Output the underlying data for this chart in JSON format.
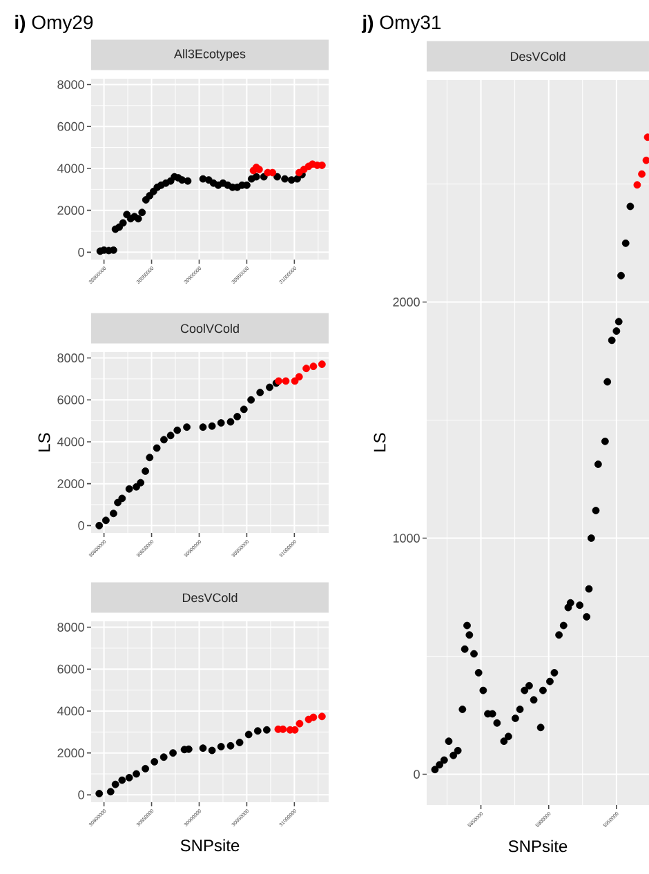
{
  "chart_data": [
    {
      "type": "scatter",
      "title": "All3Ecotypes",
      "annotations": [
        "**i)** Omy29"
      ],
      "marker": "circle",
      "grid": true,
      "xlim": [
        30786500,
        31036000
      ],
      "ylim": [
        -350,
        8280
      ],
      "xticks": [
        30800000,
        30850000,
        30900000,
        30950000,
        31000000
      ],
      "yticks": [
        0,
        2000,
        4000,
        6000,
        8000
      ],
      "series": [
        {
          "color": "#000000",
          "x": [
            30796000,
            30800000,
            30805000,
            30810000,
            30812000,
            30816000,
            30820000,
            30824000,
            30828000,
            30832000,
            30836000,
            30840000,
            30844000,
            30848000,
            30852000,
            30856000,
            30860000,
            30865000,
            30870000,
            30874000,
            30878000,
            30882000,
            30888000,
            30904000,
            30910000,
            30915000,
            30920000,
            30925000,
            30930000,
            30935000,
            30940000,
            30945000,
            30950000,
            30955000,
            30960000,
            30968000,
            30982000,
            30990000,
            30997000,
            31003000,
            31008000
          ],
          "values": [
            50,
            100,
            80,
            100,
            1100,
            1200,
            1400,
            1800,
            1600,
            1700,
            1600,
            1900,
            2500,
            2700,
            2900,
            3100,
            3200,
            3300,
            3400,
            3600,
            3550,
            3450,
            3400,
            3500,
            3450,
            3300,
            3200,
            3300,
            3200,
            3100,
            3100,
            3200,
            3200,
            3500,
            3600,
            3600,
            3600,
            3500,
            3450,
            3500,
            3700
          ]
        },
        {
          "color": "#ff0000",
          "x": [
            30957000,
            30960000,
            30963000,
            30972000,
            30977000,
            31005000,
            31010000,
            31015000,
            31019000,
            31024000,
            31029000
          ],
          "values": [
            3900,
            4050,
            3950,
            3800,
            3800,
            3800,
            3950,
            4100,
            4200,
            4150,
            4150
          ]
        }
      ]
    },
    {
      "type": "scatter",
      "title": "CoolVCold",
      "ylabel": "LS",
      "marker": "circle",
      "grid": true,
      "xlim": [
        30786500,
        31036000
      ],
      "ylim": [
        -350,
        8280
      ],
      "xticks": [
        30800000,
        30850000,
        30900000,
        30950000,
        31000000
      ],
      "yticks": [
        0,
        2000,
        4000,
        6000,
        8000
      ],
      "series": [
        {
          "color": "#000000",
          "x": [
            30795000,
            30802000,
            30810000,
            30814500,
            30819000,
            30826500,
            30834000,
            30838500,
            30843500,
            30848000,
            30855500,
            30863000,
            30870000,
            30877000,
            30887000,
            30904000,
            30913500,
            30923000,
            30933000,
            30940000,
            30947000,
            30954500,
            30964000,
            30974000,
            30981000
          ],
          "values": [
            0,
            250,
            580,
            1100,
            1300,
            1750,
            1850,
            2050,
            2600,
            3250,
            3700,
            4100,
            4300,
            4550,
            4700,
            4700,
            4750,
            4900,
            4950,
            5200,
            5550,
            6000,
            6350,
            6600,
            6800
          ]
        },
        {
          "color": "#ff0000",
          "x": [
            30983500,
            30991000,
            31000500,
            31005000,
            31012500,
            31020000,
            31029000
          ],
          "values": [
            6900,
            6900,
            6900,
            7100,
            7500,
            7600,
            7700
          ]
        }
      ]
    },
    {
      "type": "scatter",
      "title": "DesVCold",
      "xlabel": "SNPsite",
      "marker": "circle",
      "grid": true,
      "xlim": [
        30786500,
        31036000
      ],
      "ylim": [
        -350,
        8280
      ],
      "xticks": [
        30800000,
        30850000,
        30900000,
        30950000,
        31000000
      ],
      "yticks": [
        0,
        2000,
        4000,
        6000,
        8000
      ],
      "series": [
        {
          "color": "#000000",
          "x": [
            30795000,
            30807000,
            30812000,
            30819000,
            30826500,
            30834000,
            30843500,
            30853000,
            30862800,
            30872500,
            30884500,
            30889000,
            30904000,
            30913500,
            30923000,
            30933000,
            30942500,
            30952000,
            30961500,
            30971000
          ],
          "values": [
            60,
            150,
            500,
            700,
            820,
            1000,
            1250,
            1580,
            1800,
            2000,
            2160,
            2180,
            2230,
            2120,
            2300,
            2340,
            2500,
            2880,
            3050,
            3100
          ]
        },
        {
          "color": "#ff0000",
          "x": [
            30983000,
            30988000,
            30995500,
            31000500,
            31005500,
            31015000,
            31020000,
            31029000
          ],
          "values": [
            3130,
            3130,
            3100,
            3100,
            3400,
            3600,
            3700,
            3740
          ]
        }
      ]
    },
    {
      "type": "scatter",
      "title": "DesVCold",
      "annotations": [
        "**j)** Omy31"
      ],
      "xlabel": "SNPsite",
      "ylabel": "LS",
      "marker": "circle",
      "grid": true,
      "xlim": [
        5810000,
        5974000
      ],
      "ylim": [
        -130,
        2940
      ],
      "xticks": [
        5850000,
        5900000,
        5950000
      ],
      "yticks": [
        0,
        1000,
        2000
      ],
      "series": [
        {
          "color": "#000000",
          "x": [
            5816100,
            5819500,
            5822900,
            5826300,
            5829700,
            5833000,
            5836400,
            5838100,
            5839800,
            5841500,
            5844900,
            5848300,
            5851700,
            5855100,
            5858500,
            5861900,
            5867000,
            5870300,
            5875400,
            5878800,
            5882200,
            5885600,
            5889000,
            5894100,
            5895800,
            5900900,
            5904200,
            5907600,
            5911000,
            5914400,
            5916100,
            5922900,
            5928000,
            5929700,
            5931400,
            5934800,
            5936500,
            5941600,
            5943300,
            5946600,
            5950000,
            5951700,
            5953400,
            5956800,
            5960200
          ],
          "values": [
            20,
            40,
            60,
            140,
            80,
            100,
            275,
            530,
            630,
            590,
            510,
            430,
            355,
            256,
            256,
            217,
            140,
            160,
            237,
            275,
            355,
            375,
            315,
            198,
            355,
            393,
            430,
            590,
            630,
            706,
            726,
            716,
            667,
            785,
            1000,
            1117,
            1313,
            1410,
            1662,
            1838,
            1877,
            1917,
            2112,
            2249,
            2405
          ]
        },
        {
          "color": "#ff0000",
          "x": [
            5965300,
            5968700,
            5972000,
            5973000
          ],
          "values": [
            2496,
            2542,
            2600,
            2698
          ]
        }
      ]
    }
  ]
}
